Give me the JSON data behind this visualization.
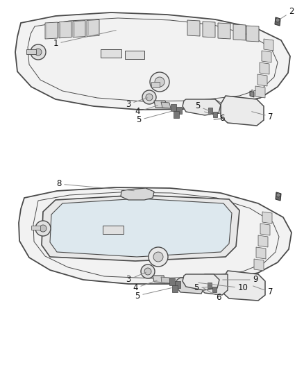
{
  "bg_color": "#ffffff",
  "line_color": "#4a4a4a",
  "label_color": "#222222",
  "fig_w": 4.38,
  "fig_h": 5.33,
  "dpi": 100
}
